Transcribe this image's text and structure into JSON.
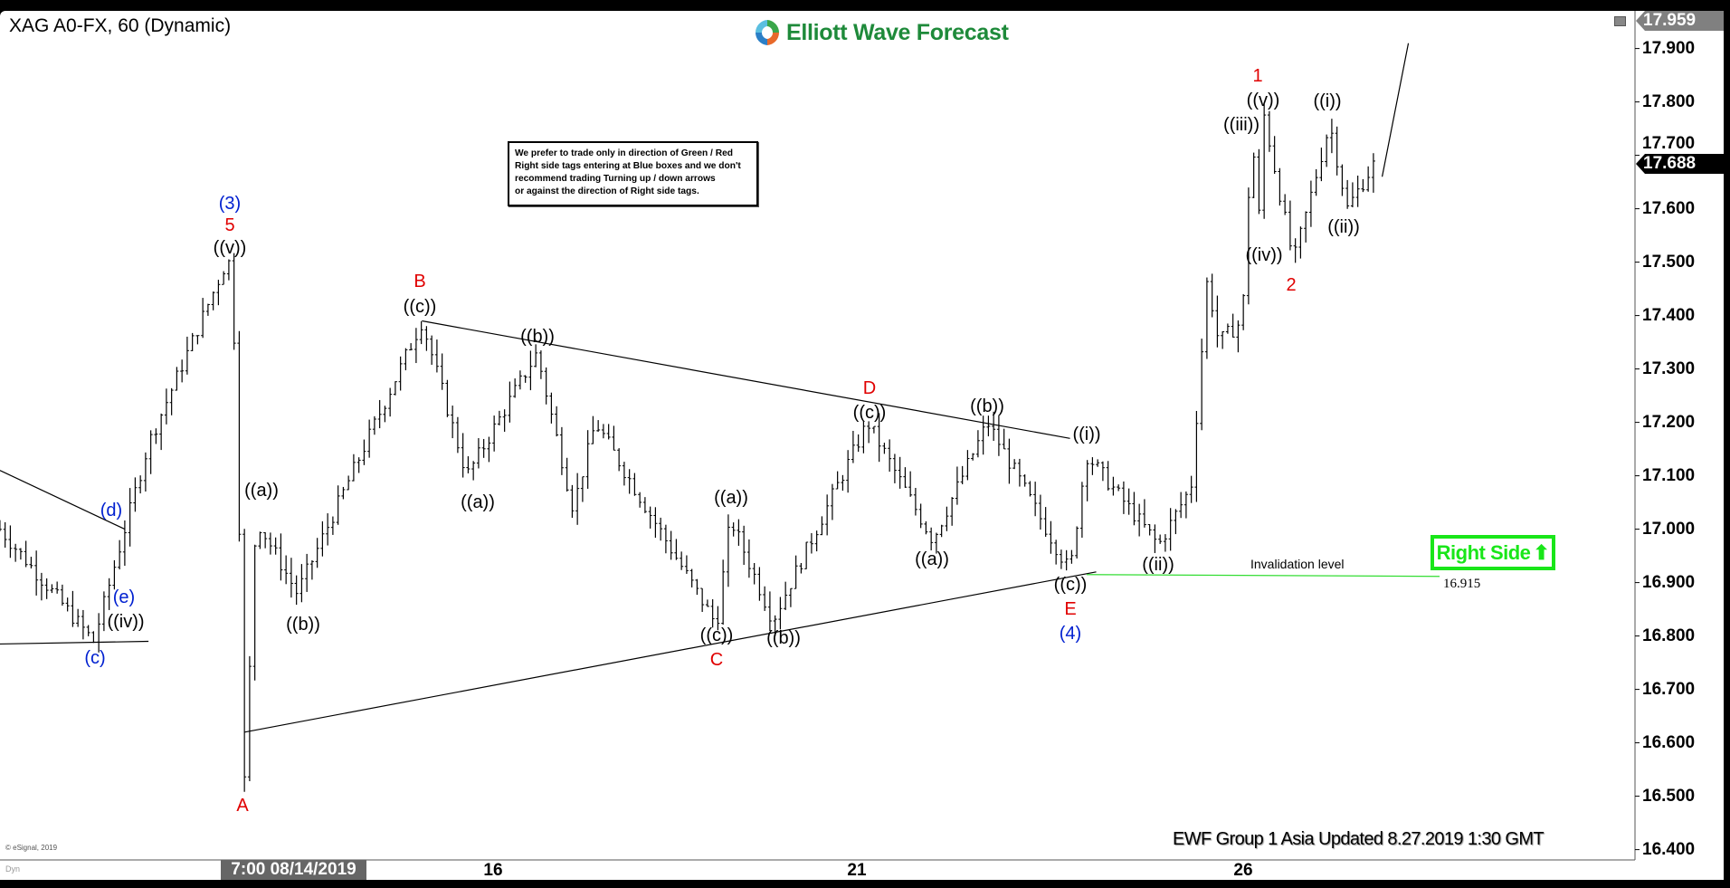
{
  "header": {
    "title": "XAG A0-FX, 60 (Dynamic)",
    "logo_text": "Elliott Wave Forecast"
  },
  "note": {
    "lines": [
      "We prefer to trade only in direction of Green / Red",
      "Right side tags entering at Blue boxes and we don't",
      "recommend trading Turning up / down arrows",
      "or against the direction of Right side tags."
    ]
  },
  "right_side": {
    "label": "Right Side",
    "arrow": "up-arrow-icon",
    "color": "#19e619"
  },
  "invalidation": {
    "label": "Invalidation level",
    "value": "16.915",
    "price": 16.915
  },
  "footer": {
    "text": "EWF Group 1 Asia Updated 8.27.2019 1:30 GMT",
    "copyright": "© eSignal, 2019",
    "dyn": "Dyn"
  },
  "price_tags": {
    "high": "17.959",
    "last": "17.688",
    "high_color": "#808080",
    "last_color": "#000000"
  },
  "wave_labels": [
    "(3)",
    "5",
    "((v))",
    "((a))",
    "A",
    "((b))",
    "B",
    "((c))",
    "((a))",
    "((b))",
    "((a))",
    "((c))",
    "C",
    "((b))",
    "D",
    "((c))",
    "((a))",
    "((b))",
    "((i))",
    "((c))",
    "E",
    "(4)",
    "((ii))",
    "1",
    "((v))",
    "((iii))",
    "((iv))",
    "2",
    "((i))",
    "((ii))",
    "(d)",
    "(e)",
    "((iv))",
    "(c)"
  ],
  "chart_data": {
    "type": "ohlc-bar",
    "timeframe": "60",
    "x_unit": "trading days from Aug 16",
    "x_ticks": [
      {
        "label": "7:00 08/14/2019",
        "x": -1.6,
        "highlight": true
      },
      {
        "label": "16",
        "x": 0
      },
      {
        "label": "21",
        "x": 3
      },
      {
        "label": "26",
        "x": 6
      }
    ],
    "y_ticks": [
      "17.900",
      "17.800",
      "17.700",
      "17.600",
      "17.500",
      "17.400",
      "17.300",
      "17.200",
      "17.100",
      "17.000",
      "16.900",
      "16.800",
      "16.700",
      "16.600",
      "16.500",
      "16.400"
    ],
    "ylim": [
      16.4,
      17.959
    ],
    "price_path": [
      [
        -3.95,
        17.0
      ],
      [
        -3.2,
        16.79
      ],
      [
        -2.76,
        17.16
      ],
      [
        -2.12,
        17.51
      ],
      [
        -2.06,
        17.31
      ],
      [
        -1.99,
        16.51
      ],
      [
        -1.9,
        17.02
      ],
      [
        -1.57,
        16.88
      ],
      [
        -0.57,
        17.39
      ],
      [
        -0.21,
        17.1
      ],
      [
        0.35,
        17.33
      ],
      [
        0.64,
        17.04
      ],
      [
        0.82,
        17.2
      ],
      [
        1.79,
        16.82
      ],
      [
        1.9,
        17.02
      ],
      [
        2.24,
        16.83
      ],
      [
        3.0,
        17.2
      ],
      [
        3.52,
        16.98
      ],
      [
        3.96,
        17.2
      ],
      [
        4.62,
        16.92
      ],
      [
        4.75,
        17.14
      ],
      [
        5.33,
        16.97
      ],
      [
        5.59,
        17.08
      ],
      [
        5.72,
        17.47
      ],
      [
        5.81,
        17.35
      ],
      [
        6.0,
        17.39
      ],
      [
        6.08,
        17.77
      ],
      [
        6.12,
        17.52
      ],
      [
        6.17,
        17.78
      ],
      [
        6.41,
        17.5
      ],
      [
        6.7,
        17.76
      ],
      [
        6.84,
        17.6
      ],
      [
        7.07,
        17.69
      ]
    ],
    "trendlines": [
      {
        "from": [
          -0.57,
          17.39
        ],
        "to": [
          4.62,
          17.17
        ]
      },
      {
        "from": [
          -1.99,
          16.62
        ],
        "to": [
          4.83,
          16.92
        ]
      },
      {
        "from": [
          -3.95,
          17.11
        ],
        "to": [
          -2.95,
          17.0
        ]
      },
      {
        "from": [
          -3.95,
          16.785
        ],
        "to": [
          -2.76,
          16.79
        ]
      }
    ],
    "projection": {
      "from": [
        7.12,
        17.66
      ],
      "to": [
        7.33,
        17.91
      ]
    }
  }
}
